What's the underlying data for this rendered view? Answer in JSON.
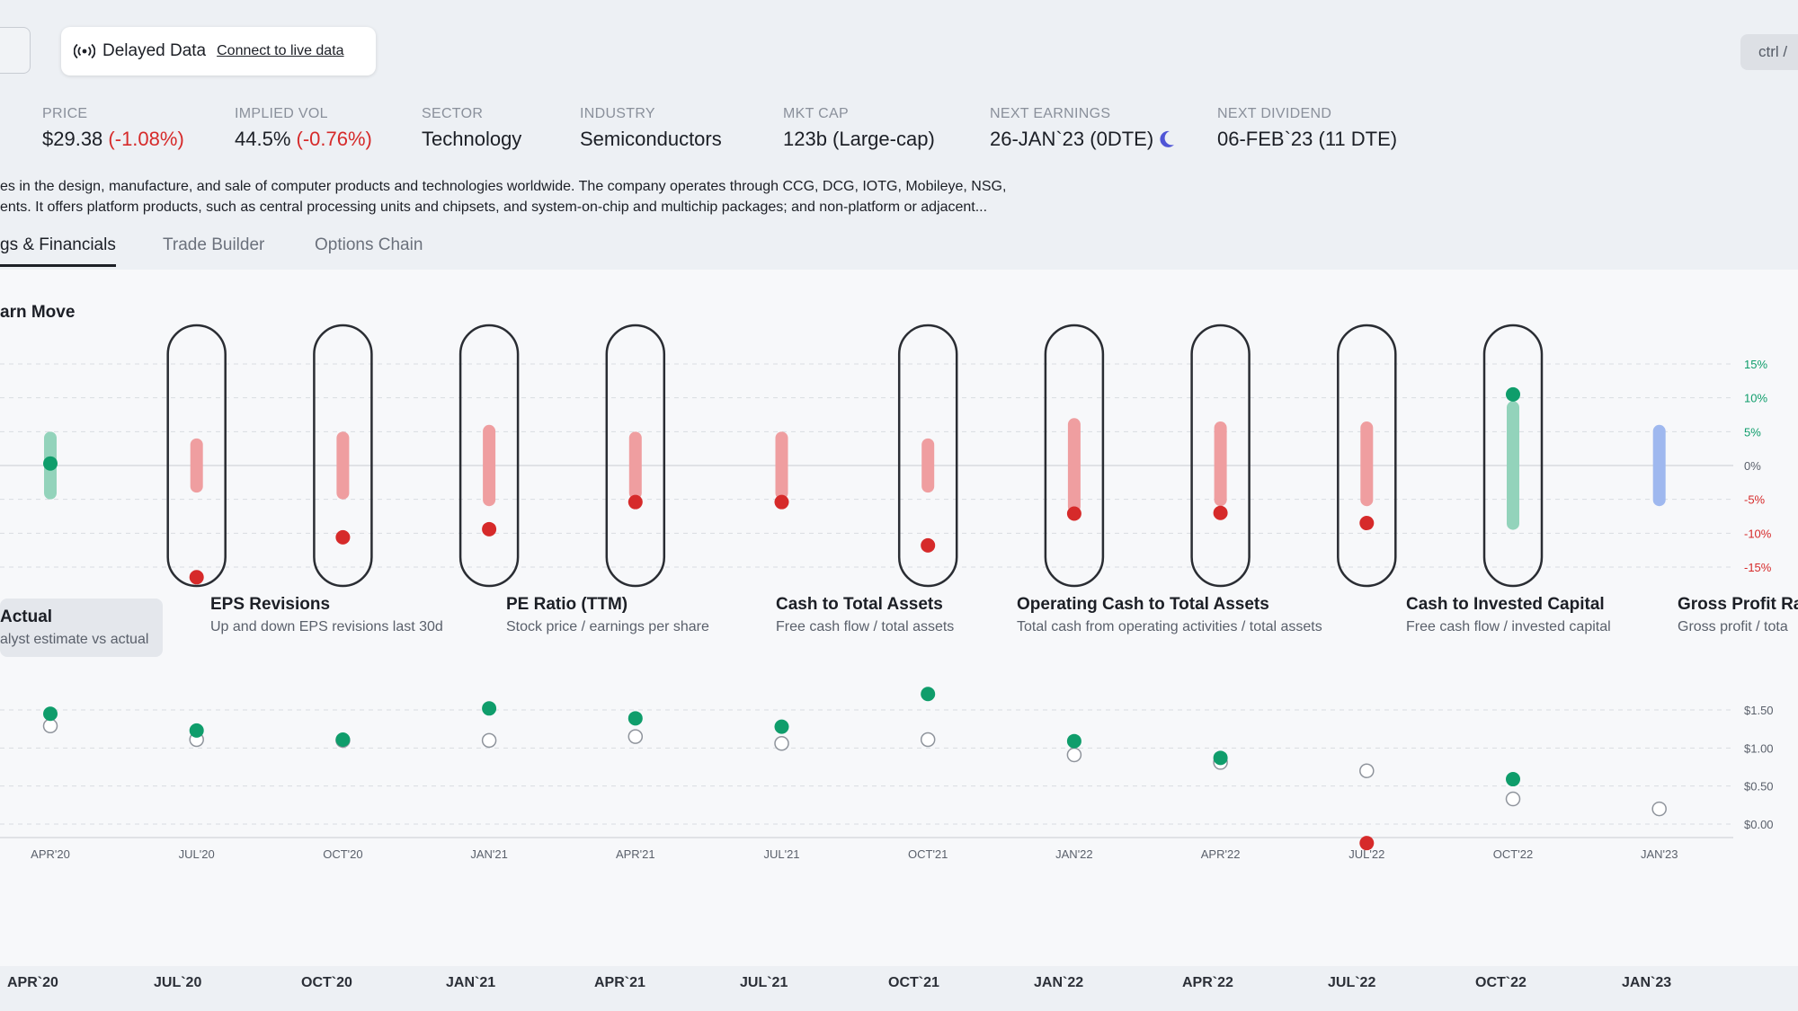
{
  "data_status": {
    "title": "Delayed Data",
    "link": "Connect to live data"
  },
  "shortcut_hint": "ctrl / ",
  "stats": {
    "price": {
      "label": "PRICE",
      "value": "$29.38",
      "change": "(-1.08%)"
    },
    "implied_vol": {
      "label": "IMPLIED VOL",
      "value": "44.5%",
      "change": "(-0.76%)"
    },
    "sector": {
      "label": "SECTOR",
      "value": "Technology"
    },
    "industry": {
      "label": "INDUSTRY",
      "value": "Semiconductors"
    },
    "mkt_cap": {
      "label": "MKT CAP",
      "value": "123b (Large-cap)"
    },
    "next_earnings": {
      "label": "NEXT EARNINGS",
      "value": "26-JAN`23 (0DTE)",
      "icon": "moon-icon"
    },
    "next_dividend": {
      "label": "NEXT DIVIDEND",
      "value": "06-FEB`23 (11 DTE)"
    }
  },
  "description": {
    "line1": "es in the design, manufacture, and sale of computer products and technologies worldwide. The company operates through CCG, DCG, IOTG, Mobileye, NSG,",
    "line2": "ents. It offers platform products, such as central processing units and chipsets, and system-on-chip and multichip packages; and non-platform or adjacent..."
  },
  "tabs": [
    "gs & Financials",
    "Trade Builder",
    "Options Chain"
  ],
  "panel_title": "arn Move",
  "colors": {
    "green": "#0f9d6b",
    "red": "#d62a2a",
    "green_bar": "#93d3bb",
    "red_bar": "#ef9ea0",
    "blue_bar": "#9fb8ef",
    "outline": "#2a2d33"
  },
  "chart_data": [
    {
      "type": "range",
      "name": "earnings move",
      "y_ticks": [
        "15%",
        "10%",
        "5%",
        "0%",
        "-5%",
        "-10%",
        "-15%"
      ],
      "ylim": [
        -15,
        15
      ],
      "categories": [
        "APR'20",
        "JUL'20",
        "OCT'20",
        "JAN'21",
        "APR'21",
        "JUL'21",
        "OCT'21",
        "JAN'22",
        "APR'22",
        "JUL'22",
        "OCT'22",
        "JAN'23"
      ],
      "expected_move_low": [
        -5,
        -4,
        -5,
        -6,
        -5,
        -5,
        -4,
        -7,
        -6,
        -6,
        -9.5,
        -6
      ],
      "expected_move_high": [
        5,
        4,
        5,
        6,
        5,
        5,
        4,
        7,
        6.5,
        6.5,
        9.5,
        6
      ],
      "actual_move": [
        0.3,
        -16.5,
        -10.6,
        -9.4,
        -5.4,
        -5.4,
        -11.8,
        -7.1,
        -7,
        -8.5,
        10.5,
        null
      ],
      "highlighted": [
        false,
        true,
        true,
        true,
        true,
        false,
        true,
        true,
        true,
        true,
        true,
        false
      ]
    },
    {
      "type": "scatter",
      "name": "eps actual vs estimate",
      "y_ticks": [
        "$1.50",
        "$1.00",
        "$0.50",
        "$0.00"
      ],
      "ylim": [
        0,
        1.5
      ],
      "categories": [
        "APR'20",
        "JUL'20",
        "OCT'20",
        "JAN'21",
        "APR'21",
        "JUL'21",
        "OCT'21",
        "JAN'22",
        "APR'22",
        "JUL'22",
        "OCT'22",
        "JAN'23"
      ],
      "actual": [
        1.45,
        1.23,
        1.11,
        1.52,
        1.39,
        1.28,
        1.71,
        1.09,
        0.87,
        -0.25,
        0.59,
        null
      ],
      "estimate": [
        1.29,
        1.11,
        1.1,
        1.1,
        1.15,
        1.06,
        1.11,
        0.91,
        0.81,
        0.7,
        0.33,
        0.2
      ]
    }
  ],
  "metric_tabs": [
    {
      "title": "Actual",
      "subtitle": "alyst estimate vs actual"
    },
    {
      "title": "EPS Revisions",
      "subtitle": "Up and down EPS revisions last 30d"
    },
    {
      "title": "PE Ratio (TTM)",
      "subtitle": "Stock price / earnings per share"
    },
    {
      "title": "Cash to Total Assets",
      "subtitle": "Free cash flow / total assets"
    },
    {
      "title": "Operating Cash to Total Assets",
      "subtitle": "Total cash from operating activities / total assets"
    },
    {
      "title": "Cash to Invested Capital",
      "subtitle": "Free cash flow / invested capital"
    },
    {
      "title": "Gross Profit Ra",
      "subtitle": "Gross profit / tota"
    }
  ],
  "bottom_axis": [
    "APR`20",
    "JUL`20",
    "OCT`20",
    "JAN`21",
    "APR`21",
    "JUL`21",
    "OCT`21",
    "JAN`22",
    "APR`22",
    "JUL`22",
    "OCT`22",
    "JAN`23"
  ]
}
